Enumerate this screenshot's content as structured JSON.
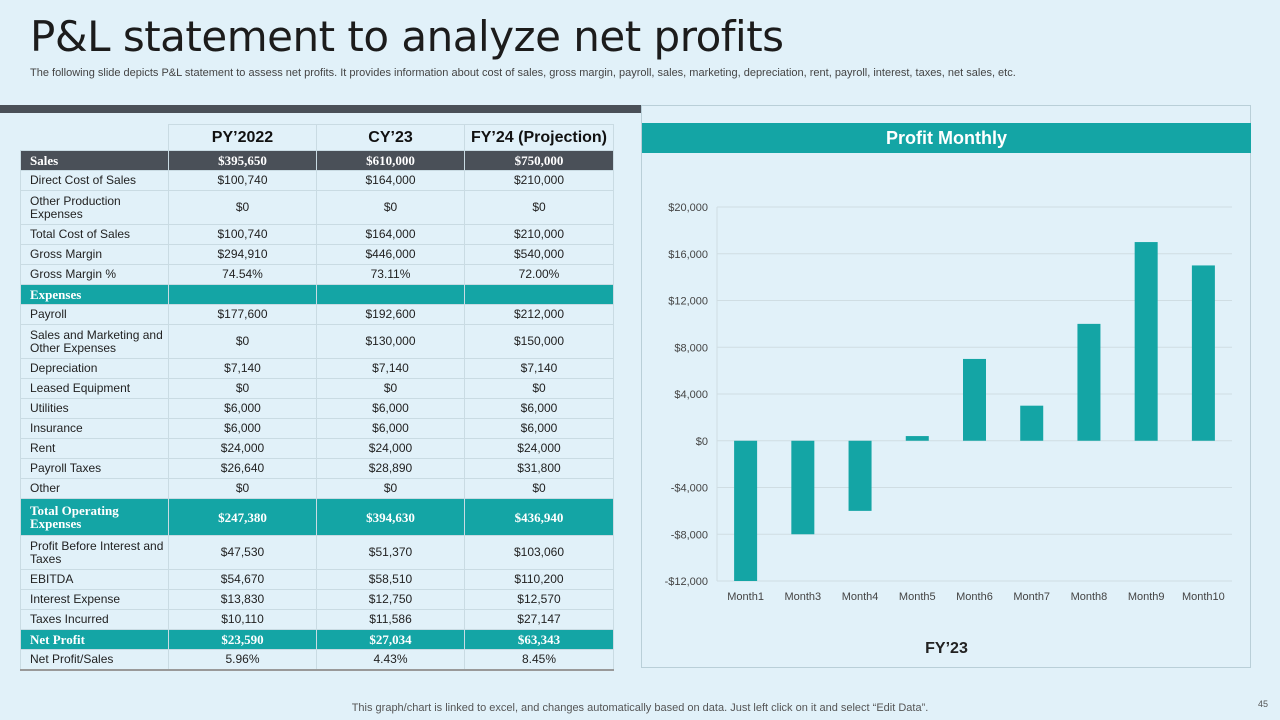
{
  "title": "P&L statement to analyze net profits",
  "subtitle": "The following slide depicts P&L statement to assess net profits. It provides information about cost of sales, gross margin, payroll, sales, marketing, depreciation, rent, payroll, interest, taxes, net sales, etc.",
  "table": {
    "headers": [
      "PY’2022",
      "CY’23",
      "FY’24 (Projection)"
    ],
    "rows": [
      {
        "label": "Sales",
        "values": [
          "$395,650",
          "$610,000",
          "$750,000"
        ]
      },
      {
        "label": "Direct Cost of Sales",
        "values": [
          "$100,740",
          "$164,000",
          "$210,000"
        ]
      },
      {
        "label": "Other Production Expenses",
        "values": [
          "$0",
          "$0",
          "$0"
        ]
      },
      {
        "label": "Total Cost of Sales",
        "values": [
          "$100,740",
          "$164,000",
          "$210,000"
        ]
      },
      {
        "label": "Gross Margin",
        "values": [
          "$294,910",
          "$446,000",
          "$540,000"
        ]
      },
      {
        "label": "Gross Margin %",
        "values": [
          "74.54%",
          "73.11%",
          "72.00%"
        ]
      },
      {
        "label": "Expenses",
        "values": [
          "",
          "",
          ""
        ]
      },
      {
        "label": "Payroll",
        "values": [
          "$177,600",
          "$192,600",
          "$212,000"
        ]
      },
      {
        "label": "Sales and Marketing and Other Expenses",
        "values": [
          "$0",
          "$130,000",
          "$150,000"
        ]
      },
      {
        "label": "Depreciation",
        "values": [
          "$7,140",
          "$7,140",
          "$7,140"
        ]
      },
      {
        "label": "Leased Equipment",
        "values": [
          "$0",
          "$0",
          "$0"
        ]
      },
      {
        "label": "Utilities",
        "values": [
          "$6,000",
          "$6,000",
          "$6,000"
        ]
      },
      {
        "label": "Insurance",
        "values": [
          "$6,000",
          "$6,000",
          "$6,000"
        ]
      },
      {
        "label": "Rent",
        "values": [
          "$24,000",
          "$24,000",
          "$24,000"
        ]
      },
      {
        "label": "Payroll Taxes",
        "values": [
          "$26,640",
          "$28,890",
          "$31,800"
        ]
      },
      {
        "label": "Other",
        "values": [
          "$0",
          "$0",
          "$0"
        ]
      },
      {
        "label": "Total Operating Expenses",
        "values": [
          "$247,380",
          "$394,630",
          "$436,940"
        ]
      },
      {
        "label": "Profit Before Interest and Taxes",
        "values": [
          "$47,530",
          "$51,370",
          "$103,060"
        ]
      },
      {
        "label": "EBITDA",
        "values": [
          "$54,670",
          "$58,510",
          "$110,200"
        ]
      },
      {
        "label": "Interest Expense",
        "values": [
          "$13,830",
          "$12,750",
          "$12,570"
        ]
      },
      {
        "label": "Taxes Incurred",
        "values": [
          "$10,110",
          "$11,586",
          "$27,147"
        ]
      },
      {
        "label": "Net Profit",
        "values": [
          "$23,590",
          "$27,034",
          "$63,343"
        ]
      },
      {
        "label": "Net Profit/Sales",
        "values": [
          "5.96%",
          "4.43%",
          "8.45%"
        ]
      }
    ]
  },
  "chart_data": {
    "type": "bar",
    "title": "Profit Monthly",
    "xlabel": "FY’23",
    "ylabel": "",
    "categories": [
      "Month1",
      "Month3",
      "Month4",
      "Month5",
      "Month6",
      "Month7",
      "Month8",
      "Month9",
      "Month10"
    ],
    "values": [
      -12000,
      -8000,
      -6000,
      400,
      7000,
      3000,
      10000,
      17000,
      15000
    ],
    "ylim": [
      -12000,
      20000
    ],
    "yticks": [
      20000,
      16000,
      12000,
      8000,
      4000,
      0,
      -4000,
      -8000,
      -12000
    ],
    "ytick_labels": [
      "$20,000",
      "$16,000",
      "$12,000",
      "$8,000",
      "$4,000",
      "$0",
      "-$4,000",
      "-$8,000",
      "-$12,000"
    ],
    "color": "#14a5a5",
    "grid": true
  },
  "bottom_note": "This graph/chart is linked to excel,  and changes automatically based on data. Just left click on it and select “Edit Data”.",
  "page_number": "45"
}
